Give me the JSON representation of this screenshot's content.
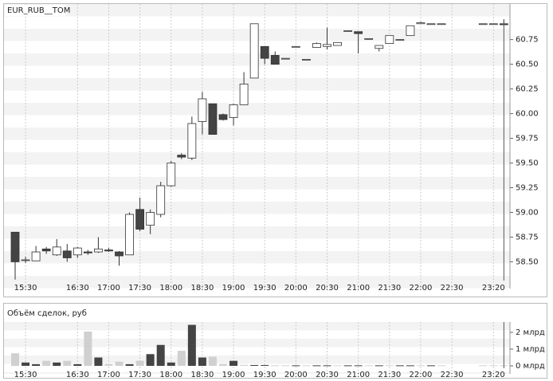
{
  "chart_data": [
    {
      "type": "candlestick",
      "title": "EUR_RUB__TOM",
      "categories": [
        null,
        "15:30",
        null,
        null,
        null,
        null,
        "16:30",
        null,
        null,
        "17:00",
        null,
        null,
        "17:30",
        null,
        null,
        "18:00",
        null,
        null,
        "18:30",
        null,
        null,
        "19:00",
        null,
        null,
        "19:30",
        null,
        null,
        "20:00",
        null,
        null,
        "20:30",
        null,
        null,
        "21:00",
        null,
        null,
        "21:30",
        null,
        null,
        "22:00",
        null,
        null,
        "22:30",
        null,
        null,
        null,
        "23:20",
        null
      ],
      "open": [
        58.8,
        58.52,
        58.51,
        58.63,
        58.57,
        58.61,
        58.57,
        58.6,
        58.6,
        58.62,
        58.6,
        58.57,
        59.03,
        58.87,
        58.98,
        59.27,
        59.58,
        59.55,
        59.92,
        60.1,
        59.99,
        59.96,
        60.09,
        60.36,
        60.68,
        60.59,
        60.56,
        60.68,
        60.55,
        60.67,
        60.68,
        60.69,
        60.84,
        60.83,
        60.76,
        60.66,
        60.71,
        60.75,
        60.79,
        60.91,
        60.91,
        60.91,
        null,
        null,
        null,
        60.91,
        60.91,
        60.91
      ],
      "high": [
        58.8,
        58.55,
        58.66,
        58.65,
        58.73,
        58.68,
        58.65,
        58.62,
        58.75,
        58.64,
        58.61,
        59.0,
        59.15,
        59.03,
        59.31,
        59.52,
        59.6,
        59.97,
        60.22,
        60.1,
        60.0,
        60.1,
        60.42,
        60.91,
        60.68,
        60.63,
        60.56,
        60.68,
        60.55,
        60.72,
        60.87,
        60.72,
        60.84,
        60.83,
        60.76,
        60.69,
        60.79,
        60.75,
        60.89,
        60.93,
        60.91,
        60.91,
        null,
        null,
        null,
        60.91,
        60.91,
        60.95
      ],
      "low": [
        58.32,
        58.49,
        58.51,
        58.58,
        58.56,
        58.5,
        58.54,
        58.57,
        58.59,
        58.6,
        58.46,
        58.57,
        58.81,
        58.78,
        58.95,
        59.26,
        59.54,
        59.53,
        59.79,
        59.79,
        59.93,
        59.88,
        60.09,
        60.36,
        60.5,
        60.5,
        60.56,
        60.68,
        60.55,
        60.67,
        60.65,
        60.69,
        60.84,
        60.61,
        60.76,
        60.63,
        60.71,
        60.75,
        60.79,
        60.91,
        60.91,
        60.91,
        null,
        null,
        null,
        60.91,
        60.91,
        60.9
      ],
      "close": [
        58.5,
        58.52,
        58.6,
        58.61,
        58.65,
        58.54,
        58.64,
        58.59,
        58.63,
        58.61,
        58.56,
        58.98,
        58.83,
        59.0,
        59.27,
        59.5,
        59.56,
        59.9,
        60.15,
        59.79,
        59.94,
        60.09,
        60.3,
        60.91,
        60.56,
        60.5,
        60.56,
        60.68,
        60.55,
        60.71,
        60.7,
        60.72,
        60.84,
        60.81,
        60.76,
        60.69,
        60.79,
        60.75,
        60.89,
        60.92,
        60.91,
        60.91,
        null,
        null,
        null,
        60.91,
        60.91,
        60.9
      ],
      "up_color": "#ffffff",
      "down_color": "#444444",
      "ylim": [
        58.31,
        61.11
      ],
      "yticks": [
        {
          "value": 58.5,
          "label": "58.50"
        },
        58.75,
        {
          "value": 59,
          "label": "59.00"
        },
        59.25,
        {
          "value": 59.5,
          "label": "59.50"
        },
        59.75,
        {
          "value": 60,
          "label": "60.00"
        },
        60.25,
        {
          "value": 60.5,
          "label": "60.50"
        },
        60.75
      ]
    },
    {
      "type": "bar",
      "title": "Объём сделок, руб",
      "values": [
        0.75,
        0.2,
        0.1,
        0.3,
        0.2,
        0.3,
        0.1,
        2.05,
        0.5,
        0.1,
        0.25,
        0.1,
        0.3,
        0.7,
        1.25,
        0.2,
        0.9,
        2.45,
        0.5,
        0.55,
        0.1,
        0.3,
        0.05,
        0.05,
        0.05,
        0.03,
        0.03,
        0.03,
        0.03,
        0.03,
        0.03,
        0.03,
        0.03,
        0.03,
        0.03,
        0.03,
        0.03,
        0.03,
        0.03,
        0.03,
        0.03,
        0.03,
        null,
        null,
        null,
        0.03,
        0.03,
        0.03
      ],
      "colors": [
        "#d0d0d0",
        "#444444",
        "#444444",
        "#d0d0d0",
        "#444444",
        "#d0d0d0",
        "#444444",
        "#d0d0d0",
        "#444444",
        "#d0d0d0",
        "#d0d0d0",
        "#444444",
        "#d0d0d0",
        "#444444",
        "#444444",
        "#444444",
        "#d0d0d0",
        "#444444",
        "#444444",
        "#d0d0d0",
        "#d0d0d0",
        "#444444",
        "#d0d0d0",
        "#444444",
        "#444444",
        "#d0d0d0",
        "#d0d0d0",
        "#444444",
        "#d0d0d0",
        "#444444",
        "#444444",
        "#d0d0d0",
        "#444444",
        "#444444",
        "#d0d0d0",
        "#444444",
        "#d0d0d0",
        "#444444",
        "#444444",
        "#d0d0d0",
        "#444444",
        "#d0d0d0",
        null,
        null,
        null,
        "#d0d0d0",
        "#d0d0d0",
        "#d0d0d0"
      ],
      "ylim": [
        0,
        2.62
      ],
      "yticks": [
        {
          "value": 0,
          "label": "0 млрд"
        },
        {
          "value": 1,
          "label": "1 млрд"
        },
        {
          "value": 2,
          "label": "2 млрд"
        }
      ]
    }
  ]
}
